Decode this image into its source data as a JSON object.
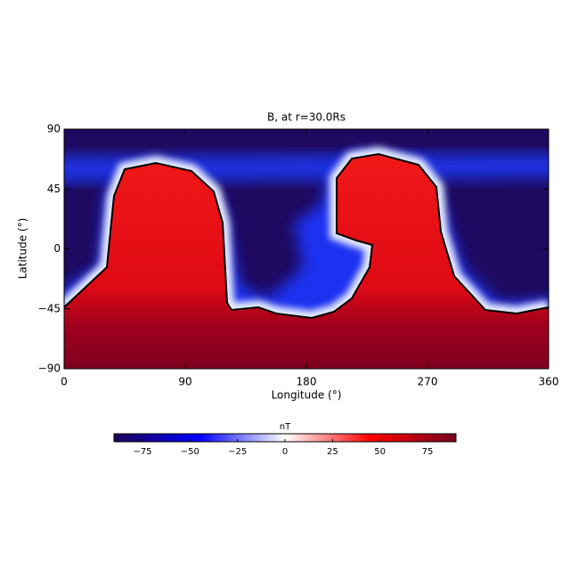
{
  "chart_data": {
    "type": "heatmap",
    "title": "B, at r=30.0Rs",
    "xlabel": "Longitude (°)",
    "ylabel": "Latitude (°)",
    "xlim": [
      0,
      360
    ],
    "xticks": [
      0,
      90,
      180,
      270,
      360
    ],
    "ylim": [
      -90,
      90
    ],
    "yticks": [
      90,
      45,
      0,
      {
        "value": -45,
        "label": "−45"
      },
      {
        "value": -90,
        "label": "−90"
      }
    ],
    "colorbar": {
      "label": "nT",
      "lim": [
        -90,
        90
      ],
      "ticks": [
        {
          "value": -75,
          "label": "−75"
        },
        {
          "value": -50,
          "label": "−50"
        },
        {
          "value": -25,
          "label": "−25"
        },
        0,
        25,
        50,
        75
      ],
      "colors": [
        "#1e0055",
        "#0000ff",
        "#ffffff",
        "#ff0000",
        "#780020"
      ]
    }
  }
}
